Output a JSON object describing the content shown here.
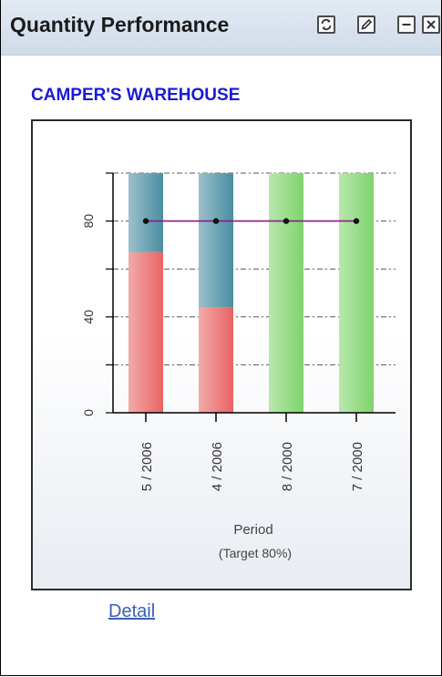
{
  "pagelet": {
    "title": "Quantity Performance",
    "buttons": [
      {
        "name": "refresh-button",
        "icon": "refresh-icon"
      },
      {
        "name": "edit-button",
        "icon": "pencil-icon"
      },
      {
        "name": "minimize-button",
        "icon": "minimize-icon"
      },
      {
        "name": "close-button",
        "icon": "close-icon"
      }
    ]
  },
  "org_name": "CAMPER'S WAREHOUSE",
  "detail_link": "Detail",
  "chart_data": {
    "type": "bar",
    "stacked": true,
    "categories": [
      "5 / 2006",
      "4 / 2006",
      "8 / 2000",
      "7 / 2000"
    ],
    "series": [
      {
        "color": "#e96464",
        "values": [
          67,
          44,
          0,
          0
        ]
      },
      {
        "color": "#4a8ea1",
        "values": [
          33,
          56,
          0,
          0
        ]
      },
      {
        "color": "#7fd46c",
        "values": [
          0,
          0,
          100,
          100
        ]
      }
    ],
    "target_line": {
      "values": [
        80,
        80,
        80,
        80
      ],
      "color": "#8b1a8b"
    },
    "ylim": [
      0,
      100
    ],
    "yticks": [
      0,
      40,
      80
    ],
    "xlabel": "Period",
    "xlabel_sub": "(Target 80%)",
    "grid": true
  }
}
